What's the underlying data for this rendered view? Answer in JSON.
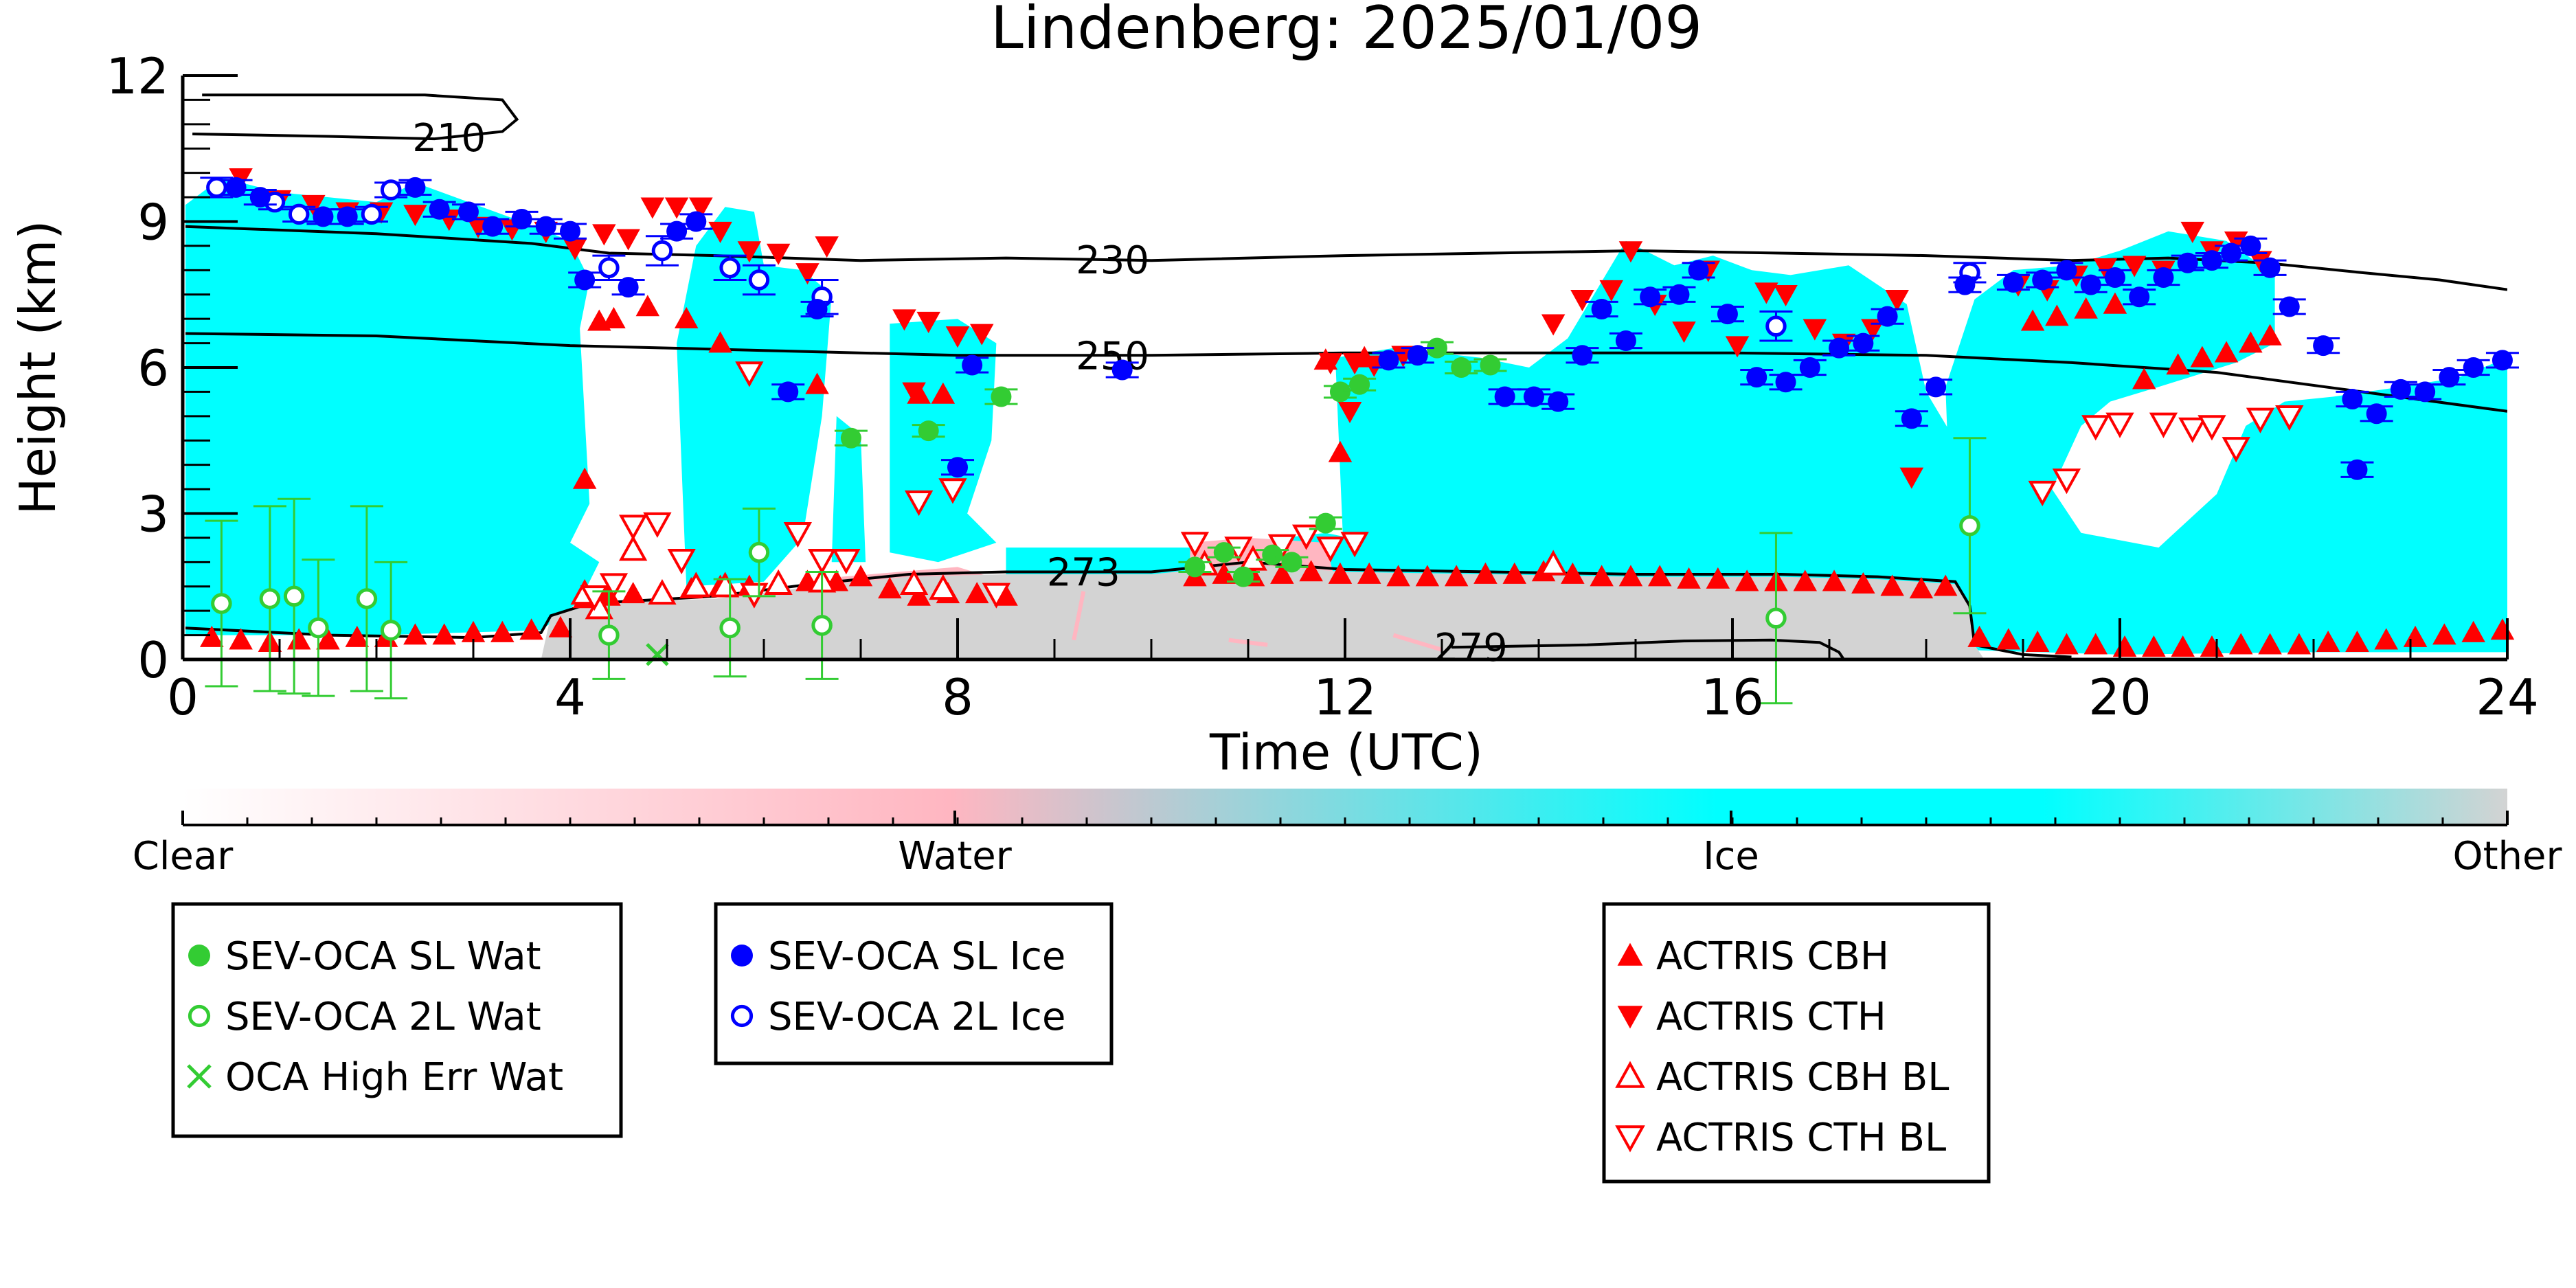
{
  "colors": {
    "ice": "#00ffff",
    "water": "#ffb6c1",
    "other": "#d3d3d3",
    "sev_blue": "#0000ff",
    "sev_green": "#33cc33",
    "actris_red": "#ff0000",
    "contour": "#000000"
  },
  "chart_data": {
    "type": "scatter",
    "title": "Lindenberg: 2025/01/09",
    "xlabel": "Time (UTC)",
    "ylabel": "Height (km)",
    "xlim": [
      0,
      24
    ],
    "ylim": [
      0,
      12
    ],
    "xticks": [
      0,
      4,
      8,
      12,
      16,
      20,
      24
    ],
    "yticks": [
      0,
      3,
      6,
      9,
      12
    ],
    "grid": false,
    "colorbar": {
      "labels": [
        "Clear",
        "Water",
        "Ice",
        "Other"
      ],
      "colors": [
        "#ffffff",
        "#ffb6c1",
        "#00ffff",
        "#d3d3d3"
      ]
    },
    "contours": [
      {
        "label": "210",
        "label_x": 2.75,
        "points": [
          [
            0.1,
            10.8
          ],
          [
            1.5,
            10.75
          ],
          [
            2.6,
            10.7
          ],
          [
            3.3,
            10.85
          ],
          [
            3.45,
            11.1
          ],
          [
            3.3,
            11.5
          ],
          [
            2.5,
            11.6
          ],
          [
            1.2,
            11.6
          ],
          [
            0.2,
            11.6
          ]
        ]
      },
      {
        "label": "230",
        "label_x": 9.6,
        "points": [
          [
            0,
            8.9
          ],
          [
            2,
            8.75
          ],
          [
            3.6,
            8.55
          ],
          [
            4.4,
            8.35
          ],
          [
            5.5,
            8.3
          ],
          [
            7,
            8.2
          ],
          [
            8.5,
            8.25
          ],
          [
            10,
            8.2
          ],
          [
            12,
            8.3
          ],
          [
            13.5,
            8.35
          ],
          [
            15,
            8.4
          ],
          [
            16.5,
            8.35
          ],
          [
            18,
            8.3
          ],
          [
            19.5,
            8.2
          ],
          [
            20.5,
            8.25
          ],
          [
            21.5,
            8.15
          ],
          [
            22.5,
            7.95
          ],
          [
            23.3,
            7.8
          ],
          [
            24,
            7.6
          ]
        ]
      },
      {
        "label": "250",
        "label_x": 9.6,
        "points": [
          [
            0,
            6.7
          ],
          [
            2,
            6.65
          ],
          [
            4,
            6.45
          ],
          [
            6,
            6.35
          ],
          [
            8,
            6.25
          ],
          [
            10,
            6.25
          ],
          [
            12,
            6.3
          ],
          [
            14,
            6.3
          ],
          [
            16,
            6.3
          ],
          [
            18,
            6.25
          ],
          [
            19.5,
            6.1
          ],
          [
            21,
            5.9
          ],
          [
            22.5,
            5.5
          ],
          [
            24,
            5.1
          ]
        ]
      },
      {
        "label": "273",
        "label_x": 9.3,
        "points": [
          [
            0,
            0.65
          ],
          [
            1.5,
            0.5
          ],
          [
            3.0,
            0.45
          ],
          [
            3.7,
            0.55
          ],
          [
            3.8,
            0.9
          ],
          [
            4.2,
            1.15
          ],
          [
            5.5,
            1.3
          ],
          [
            6.5,
            1.55
          ],
          [
            7.5,
            1.75
          ],
          [
            8.5,
            1.8
          ],
          [
            10,
            1.8
          ],
          [
            11,
            2.0
          ],
          [
            12,
            1.85
          ],
          [
            13.5,
            1.8
          ],
          [
            15,
            1.75
          ],
          [
            16.5,
            1.75
          ],
          [
            17.5,
            1.7
          ],
          [
            18.3,
            1.6
          ],
          [
            18.45,
            1.1
          ],
          [
            18.5,
            0.3
          ],
          [
            19,
            0.1
          ],
          [
            19.5,
            0.05
          ]
        ]
      },
      {
        "label": "279",
        "label_x": 13.3,
        "points": [
          [
            13.1,
            0.25
          ],
          [
            14.5,
            0.3
          ],
          [
            15.5,
            0.38
          ],
          [
            16.4,
            0.4
          ],
          [
            16.9,
            0.35
          ],
          [
            17.1,
            0.15
          ],
          [
            17.15,
            0.0
          ]
        ]
      }
    ],
    "series": [
      {
        "name": "SEV-OCA SL Wat",
        "marker": "filled-circle",
        "color": "#33cc33",
        "x": [
          6.9,
          7.7,
          8.45,
          10.45,
          10.75,
          10.95,
          11.25,
          11.45,
          11.8,
          11.95,
          12.15,
          12.95,
          13.2,
          13.5
        ],
        "y": [
          4.55,
          4.7,
          5.4,
          1.9,
          2.2,
          1.7,
          2.15,
          2.0,
          2.8,
          5.5,
          5.65,
          6.4,
          6.0,
          6.05
        ],
        "err": [
          0.15,
          0.12,
          0.15,
          0.1,
          0.1,
          0.1,
          0.1,
          0.1,
          0.12,
          0.12,
          0.12,
          0.12,
          0.12,
          0.12
        ]
      },
      {
        "name": "SEV-OCA 2L Wat",
        "marker": "open-circle",
        "color": "#33cc33",
        "x": [
          0.4,
          0.9,
          1.15,
          1.4,
          1.9,
          2.15,
          4.4,
          5.65,
          5.95,
          6.6,
          16.45,
          18.45
        ],
        "y": [
          1.15,
          1.25,
          1.3,
          0.65,
          1.25,
          0.6,
          0.5,
          0.65,
          2.2,
          0.7,
          0.85,
          2.75
        ],
        "err": [
          1.7,
          1.9,
          2.0,
          1.4,
          1.9,
          1.4,
          0.9,
          1.0,
          0.9,
          1.1,
          1.75,
          1.8
        ]
      },
      {
        "name": "OCA High Err Wat",
        "marker": "x",
        "color": "#33cc33",
        "x": [
          4.9
        ],
        "y": [
          0.1
        ]
      },
      {
        "name": "SEV-OCA SL Ice",
        "marker": "filled-circle",
        "color": "#0000ff",
        "x": [
          0.55,
          0.8,
          1.45,
          1.7,
          2.4,
          2.65,
          2.95,
          3.2,
          3.5,
          3.75,
          4.0,
          4.15,
          4.6,
          5.1,
          5.3,
          6.25,
          6.55,
          8.15,
          8.0,
          9.7,
          12.45,
          12.75,
          13.65,
          13.95,
          14.2,
          14.45,
          14.65,
          14.9,
          15.15,
          15.45,
          15.65,
          15.95,
          16.25,
          16.55,
          16.8,
          17.1,
          17.35,
          17.6,
          17.85,
          18.1,
          18.4,
          18.9,
          19.2,
          19.45,
          19.7,
          19.95,
          20.2,
          20.45,
          20.7,
          20.95,
          21.15,
          21.35,
          21.55,
          21.75,
          22.1,
          22.4,
          22.45,
          22.65,
          22.9,
          23.15,
          23.4,
          23.65,
          23.95
        ],
        "y": [
          9.7,
          9.5,
          9.1,
          9.1,
          9.7,
          9.25,
          9.2,
          8.9,
          9.05,
          8.9,
          8.8,
          7.8,
          7.65,
          8.8,
          9.0,
          5.5,
          7.2,
          6.05,
          3.95,
          5.95,
          6.15,
          6.25,
          5.4,
          5.4,
          5.3,
          6.25,
          7.2,
          6.55,
          7.45,
          7.5,
          8.0,
          7.1,
          5.8,
          5.7,
          6.0,
          6.4,
          6.5,
          7.05,
          4.95,
          5.6,
          7.7,
          7.75,
          7.8,
          8.0,
          7.7,
          7.85,
          7.45,
          7.85,
          8.15,
          8.2,
          8.35,
          8.5,
          8.05,
          7.25,
          6.45,
          5.35,
          3.9,
          5.05,
          5.55,
          5.5,
          5.8,
          6.0,
          6.15
        ],
        "err": [
          0.15,
          0.15,
          0.15,
          0.15,
          0.15,
          0.15,
          0.15,
          0.15,
          0.15,
          0.15,
          0.15,
          0.15,
          0.15,
          0.15,
          0.15,
          0.15,
          0.15,
          0.15,
          0.15,
          0.15,
          0.15,
          0.15,
          0.15,
          0.15,
          0.15,
          0.15,
          0.15,
          0.15,
          0.15,
          0.15,
          0.15,
          0.15,
          0.15,
          0.15,
          0.15,
          0.15,
          0.15,
          0.15,
          0.15,
          0.15,
          0.15,
          0.15,
          0.15,
          0.15,
          0.15,
          0.15,
          0.15,
          0.15,
          0.15,
          0.15,
          0.15,
          0.15,
          0.15,
          0.15,
          0.15,
          0.15,
          0.15,
          0.15,
          0.15,
          0.15,
          0.15,
          0.15,
          0.15
        ]
      },
      {
        "name": "SEV-OCA 2L Ice",
        "marker": "open-circle",
        "color": "#0000ff",
        "x": [
          0.35,
          0.95,
          1.2,
          1.95,
          2.15,
          4.4,
          4.95,
          5.65,
          5.95,
          6.6,
          16.45,
          18.45
        ],
        "y": [
          9.7,
          9.4,
          9.15,
          9.15,
          9.65,
          8.05,
          8.4,
          8.05,
          7.8,
          7.45,
          6.85,
          7.95
        ],
        "err": [
          0.2,
          0.15,
          0.15,
          0.15,
          0.15,
          0.25,
          0.3,
          0.25,
          0.3,
          0.35,
          0.3,
          0.2
        ]
      },
      {
        "name": "ACTRIS CBH",
        "marker": "triangle-up",
        "color": "#ff0000",
        "x": [
          0.3,
          0.6,
          0.9,
          1.2,
          1.5,
          1.8,
          2.1,
          2.4,
          2.7,
          3.0,
          3.3,
          3.6,
          3.9,
          4.15,
          4.4,
          4.65,
          4.95,
          5.25,
          5.55,
          5.85,
          6.15,
          6.45,
          6.75,
          7.0,
          7.3,
          7.6,
          7.9,
          8.2,
          8.5,
          10.45,
          10.75,
          11.05,
          11.35,
          11.65,
          11.95,
          12.25,
          12.55,
          12.85,
          13.15,
          13.45,
          13.75,
          14.05,
          14.35,
          14.65,
          14.95,
          15.25,
          15.55,
          15.85,
          16.15,
          16.45,
          16.75,
          17.05,
          17.35,
          17.65,
          17.95,
          18.2,
          18.55,
          18.85,
          19.15,
          19.45,
          19.75,
          20.05,
          20.35,
          20.65,
          20.95,
          21.25,
          21.55,
          21.85,
          22.15,
          22.45,
          22.75,
          23.05,
          23.35,
          23.65,
          23.95,
          4.15,
          4.3,
          4.45,
          4.8,
          5.2,
          5.55,
          6.55,
          7.6,
          7.85,
          11.8,
          11.95,
          12.2,
          19.1,
          19.35,
          19.65,
          19.95,
          20.25,
          20.6,
          20.85,
          21.1,
          21.35,
          21.55
        ],
        "y": [
          0.45,
          0.4,
          0.35,
          0.4,
          0.4,
          0.45,
          0.45,
          0.5,
          0.5,
          0.55,
          0.55,
          0.6,
          0.65,
          1.25,
          1.3,
          1.35,
          1.4,
          1.45,
          1.5,
          1.5,
          1.55,
          1.6,
          1.6,
          1.7,
          1.45,
          1.3,
          1.35,
          1.35,
          1.3,
          1.7,
          1.75,
          1.7,
          1.75,
          1.8,
          1.75,
          1.75,
          1.7,
          1.7,
          1.7,
          1.75,
          1.75,
          1.8,
          1.75,
          1.7,
          1.7,
          1.7,
          1.65,
          1.65,
          1.6,
          1.6,
          1.6,
          1.6,
          1.55,
          1.5,
          1.45,
          1.5,
          0.45,
          0.4,
          0.35,
          0.3,
          0.3,
          0.25,
          0.25,
          0.25,
          0.25,
          0.3,
          0.3,
          0.3,
          0.35,
          0.35,
          0.4,
          0.45,
          0.5,
          0.55,
          0.6,
          3.7,
          6.95,
          7.0,
          7.25,
          7.0,
          6.5,
          5.65,
          5.45,
          5.45,
          6.15,
          4.25,
          6.2,
          6.95,
          7.05,
          7.2,
          7.3,
          5.75,
          6.05,
          6.2,
          6.3,
          6.5,
          6.65
        ],
        "note_hidden": false
      },
      {
        "name": "ACTRIS CTH",
        "marker": "triangle-down",
        "color": "#ff0000",
        "x": [
          0.6,
          1.0,
          1.35,
          1.7,
          2.05,
          2.4,
          2.75,
          3.05,
          3.4,
          3.75,
          4.05,
          4.35,
          4.6,
          4.85,
          5.1,
          5.35,
          5.55,
          5.85,
          6.15,
          6.45,
          6.65,
          7.45,
          7.7,
          8.0,
          8.25,
          11.85,
          12.1,
          12.3,
          12.6,
          14.15,
          14.45,
          14.75,
          14.95,
          15.2,
          15.5,
          15.75,
          16.05,
          16.35,
          16.55,
          16.85,
          17.15,
          17.45,
          17.7,
          18.95,
          19.25,
          19.55,
          19.85,
          20.15,
          20.45,
          20.75,
          20.95,
          21.2,
          21.45,
          12.05,
          17.85,
          7.55
        ],
        "y": [
          9.9,
          9.45,
          9.35,
          9.2,
          9.2,
          9.15,
          9.05,
          8.9,
          8.85,
          8.8,
          8.45,
          8.75,
          8.65,
          9.3,
          9.3,
          9.3,
          8.8,
          8.4,
          8.35,
          7.95,
          8.5,
          7.0,
          6.95,
          6.65,
          6.7,
          6.1,
          6.1,
          6.05,
          6.25,
          6.9,
          7.4,
          7.6,
          8.4,
          7.3,
          6.75,
          8.0,
          6.45,
          7.55,
          7.5,
          6.8,
          6.5,
          6.8,
          7.4,
          7.7,
          7.6,
          7.9,
          8.05,
          8.1,
          8.0,
          8.8,
          8.4,
          8.6,
          8.2,
          5.1,
          3.75,
          5.5
        ]
      },
      {
        "name": "ACTRIS CBH BL",
        "marker": "open-triangle-up",
        "color": "#ff0000",
        "x": [
          4.15,
          4.3,
          4.65,
          4.95,
          5.3,
          5.6,
          6.15,
          6.6,
          7.55,
          7.85,
          10.55,
          11.05,
          14.15
        ],
        "y": [
          1.35,
          1.05,
          2.25,
          1.35,
          1.5,
          1.5,
          1.55,
          1.6,
          1.55,
          1.45,
          1.95,
          2.05,
          1.95
        ]
      },
      {
        "name": "ACTRIS CTH BL",
        "marker": "open-triangle-down",
        "color": "#ff0000",
        "x": [
          4.25,
          4.45,
          4.65,
          4.9,
          5.15,
          5.9,
          6.35,
          6.6,
          6.85,
          7.6,
          7.95,
          10.45,
          10.9,
          11.35,
          11.6,
          11.85,
          12.1,
          19.2,
          19.45,
          19.75,
          20.0,
          20.45,
          20.75,
          20.95,
          21.2,
          21.45,
          21.75,
          8.4,
          5.85
        ],
        "y": [
          1.3,
          1.55,
          2.75,
          2.8,
          2.05,
          1.35,
          2.6,
          2.05,
          2.05,
          3.25,
          3.5,
          2.4,
          2.3,
          2.35,
          2.55,
          2.3,
          2.4,
          3.45,
          3.7,
          4.8,
          4.85,
          4.85,
          4.75,
          4.8,
          4.35,
          4.95,
          5.0,
          1.35,
          5.9
        ]
      }
    ]
  },
  "legends": [
    {
      "items": [
        {
          "label": "SEV-OCA SL Wat",
          "marker": "filled-circle",
          "color": "#33cc33"
        },
        {
          "label": "SEV-OCA 2L Wat",
          "marker": "open-circle",
          "color": "#33cc33"
        },
        {
          "label": "OCA High Err Wat",
          "marker": "x",
          "color": "#33cc33"
        }
      ]
    },
    {
      "items": [
        {
          "label": "SEV-OCA SL Ice",
          "marker": "filled-circle",
          "color": "#0000ff"
        },
        {
          "label": "SEV-OCA 2L Ice",
          "marker": "open-circle",
          "color": "#0000ff"
        }
      ]
    },
    {
      "items": [
        {
          "label": "ACTRIS CBH",
          "marker": "triangle-up",
          "color": "#ff0000"
        },
        {
          "label": "ACTRIS CTH",
          "marker": "triangle-down",
          "color": "#ff0000"
        },
        {
          "label": "ACTRIS CBH BL",
          "marker": "open-triangle-up",
          "color": "#ff0000"
        },
        {
          "label": "ACTRIS CTH BL",
          "marker": "open-triangle-down",
          "color": "#ff0000"
        }
      ]
    }
  ]
}
